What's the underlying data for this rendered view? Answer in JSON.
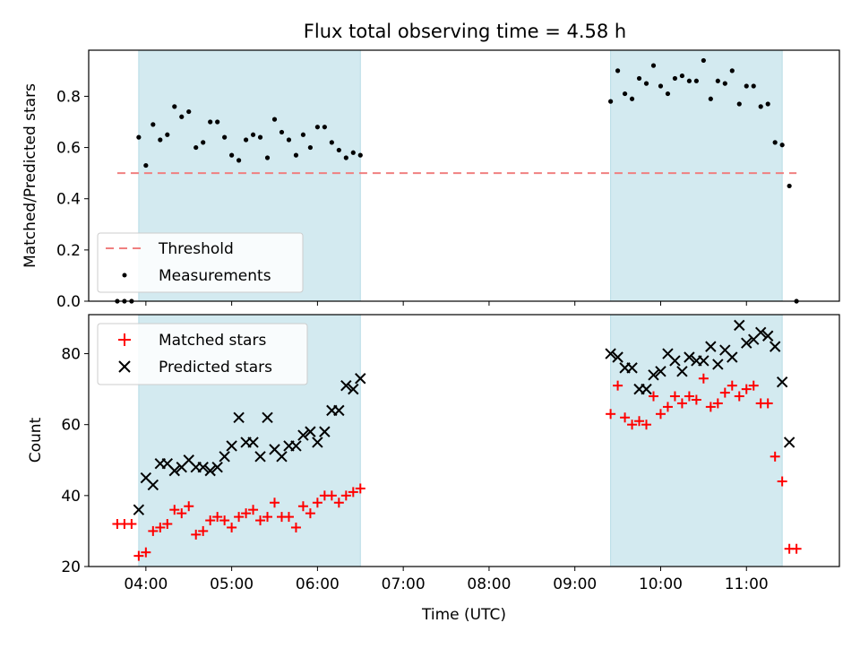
{
  "chart_data": [
    {
      "type": "scatter",
      "title": "Flux total observing time = 4.58 h",
      "ylabel": "Matched/Predicted stars",
      "xlabel": "",
      "xlim": [
        "03:20",
        "12:05"
      ],
      "ylim": [
        0.0,
        0.98
      ],
      "yticks": [
        0.0,
        0.2,
        0.4,
        0.6,
        0.8
      ],
      "ytick_labels": [
        "0.0",
        "0.2",
        "0.4",
        "0.6",
        "0.8"
      ],
      "xticks": [
        "04:00",
        "05:00",
        "06:00",
        "07:00",
        "08:00",
        "09:00",
        "10:00",
        "11:00"
      ],
      "shaded_intervals": [
        [
          "03:55",
          "06:30"
        ],
        [
          "09:25",
          "11:25"
        ]
      ],
      "shade_color": "#d3eaf0",
      "legend": {
        "placement": "lower-left",
        "threshold_label": "Threshold",
        "measurements_label": "Measurements"
      },
      "threshold": {
        "name": "Threshold",
        "value": 0.5,
        "x_range": [
          "03:40",
          "11:35"
        ],
        "color": "#f08080"
      },
      "series": [
        {
          "name": "Measurements",
          "color": "#000000",
          "x": [
            "03:40",
            "03:45",
            "03:50",
            "03:55",
            "04:00",
            "04:05",
            "04:10",
            "04:15",
            "04:20",
            "04:25",
            "04:30",
            "04:35",
            "04:40",
            "04:45",
            "04:50",
            "04:55",
            "05:00",
            "05:05",
            "05:10",
            "05:15",
            "05:20",
            "05:25",
            "05:30",
            "05:35",
            "05:40",
            "05:45",
            "05:50",
            "05:55",
            "06:00",
            "06:05",
            "06:10",
            "06:15",
            "06:20",
            "06:25",
            "06:30",
            "09:25",
            "09:30",
            "09:35",
            "09:40",
            "09:45",
            "09:50",
            "09:55",
            "10:00",
            "10:05",
            "10:10",
            "10:15",
            "10:20",
            "10:25",
            "10:30",
            "10:35",
            "10:40",
            "10:45",
            "10:50",
            "10:55",
            "11:00",
            "11:05",
            "11:10",
            "11:15",
            "11:20",
            "11:25",
            "11:30",
            "11:35"
          ],
          "y": [
            0.0,
            0.0,
            0.0,
            0.64,
            0.53,
            0.69,
            0.63,
            0.65,
            0.76,
            0.72,
            0.74,
            0.6,
            0.62,
            0.7,
            0.7,
            0.64,
            0.57,
            0.55,
            0.63,
            0.65,
            0.64,
            0.56,
            0.71,
            0.66,
            0.63,
            0.57,
            0.65,
            0.6,
            0.68,
            0.68,
            0.62,
            0.59,
            0.56,
            0.58,
            0.57,
            0.78,
            0.9,
            0.81,
            0.79,
            0.87,
            0.85,
            0.92,
            0.84,
            0.81,
            0.87,
            0.88,
            0.86,
            0.86,
            0.94,
            0.79,
            0.86,
            0.85,
            0.9,
            0.77,
            0.84,
            0.84,
            0.76,
            0.77,
            0.62,
            0.61,
            0.45,
            0.0
          ]
        }
      ]
    },
    {
      "type": "scatter",
      "title": "",
      "xlabel": "Time (UTC)",
      "ylabel": "Count",
      "xlim": [
        "03:20",
        "12:05"
      ],
      "ylim": [
        20,
        91
      ],
      "yticks": [
        20,
        40,
        60,
        80
      ],
      "ytick_labels": [
        "20",
        "40",
        "60",
        "80"
      ],
      "xticks": [
        "04:00",
        "05:00",
        "06:00",
        "07:00",
        "08:00",
        "09:00",
        "10:00",
        "11:00"
      ],
      "xtick_labels": [
        "04:00",
        "05:00",
        "06:00",
        "07:00",
        "08:00",
        "09:00",
        "10:00",
        "11:00"
      ],
      "shaded_intervals": [
        [
          "03:55",
          "06:30"
        ],
        [
          "09:25",
          "11:25"
        ]
      ],
      "shade_color": "#d3eaf0",
      "legend": {
        "placement": "top-left",
        "matched_label": "Matched stars",
        "predicted_label": "Predicted stars"
      },
      "series": [
        {
          "name": "Matched stars",
          "marker": "+",
          "color": "#ff0000",
          "x": [
            "03:40",
            "03:45",
            "03:50",
            "03:55",
            "04:00",
            "04:05",
            "04:10",
            "04:15",
            "04:20",
            "04:25",
            "04:30",
            "04:35",
            "04:40",
            "04:45",
            "04:50",
            "04:55",
            "05:00",
            "05:05",
            "05:10",
            "05:15",
            "05:20",
            "05:25",
            "05:30",
            "05:35",
            "05:40",
            "05:45",
            "05:50",
            "05:55",
            "06:00",
            "06:05",
            "06:10",
            "06:15",
            "06:20",
            "06:25",
            "06:30",
            "09:25",
            "09:30",
            "09:35",
            "09:40",
            "09:45",
            "09:50",
            "09:55",
            "10:00",
            "10:05",
            "10:10",
            "10:15",
            "10:20",
            "10:25",
            "10:30",
            "10:35",
            "10:40",
            "10:45",
            "10:50",
            "10:55",
            "11:00",
            "11:05",
            "11:10",
            "11:15",
            "11:20",
            "11:25",
            "11:30",
            "11:35"
          ],
          "y": [
            32,
            32,
            32,
            23,
            24,
            30,
            31,
            32,
            36,
            35,
            37,
            29,
            30,
            33,
            34,
            33,
            31,
            34,
            35,
            36,
            33,
            34,
            38,
            34,
            34,
            31,
            37,
            35,
            38,
            40,
            40,
            38,
            40,
            41,
            42,
            63,
            71,
            62,
            60,
            61,
            60,
            68,
            63,
            65,
            68,
            66,
            68,
            67,
            73,
            65,
            66,
            69,
            71,
            68,
            70,
            71,
            66,
            66,
            51,
            44,
            25,
            25
          ]
        },
        {
          "name": "Predicted stars",
          "marker": "x",
          "color": "#000000",
          "x": [
            "03:55",
            "04:00",
            "04:05",
            "04:10",
            "04:15",
            "04:20",
            "04:25",
            "04:30",
            "04:35",
            "04:40",
            "04:45",
            "04:50",
            "04:55",
            "05:00",
            "05:05",
            "05:10",
            "05:15",
            "05:20",
            "05:25",
            "05:30",
            "05:35",
            "05:40",
            "05:45",
            "05:50",
            "05:55",
            "06:00",
            "06:05",
            "06:10",
            "06:15",
            "06:20",
            "06:25",
            "06:30",
            "09:25",
            "09:30",
            "09:35",
            "09:40",
            "09:45",
            "09:50",
            "09:55",
            "10:00",
            "10:05",
            "10:10",
            "10:15",
            "10:20",
            "10:25",
            "10:30",
            "10:35",
            "10:40",
            "10:45",
            "10:50",
            "10:55",
            "11:00",
            "11:05",
            "11:10",
            "11:15",
            "11:20",
            "11:25",
            "11:30"
          ],
          "y": [
            36,
            45,
            43,
            49,
            49,
            47,
            48,
            50,
            48,
            48,
            47,
            48,
            51,
            54,
            62,
            55,
            55,
            51,
            62,
            53,
            51,
            54,
            54,
            57,
            58,
            55,
            58,
            64,
            64,
            71,
            70,
            73,
            80,
            79,
            76,
            76,
            70,
            70,
            74,
            75,
            80,
            78,
            75,
            79,
            78,
            78,
            82,
            77,
            81,
            79,
            88,
            83,
            84,
            86,
            85,
            82,
            72,
            55
          ]
        }
      ]
    }
  ]
}
